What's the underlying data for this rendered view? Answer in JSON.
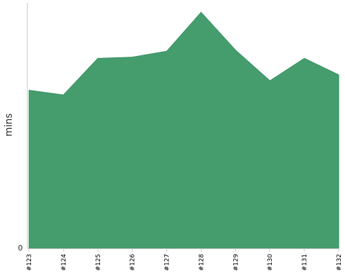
{
  "chart_data": {
    "type": "area",
    "categories": [
      "#123",
      "#124",
      "#125",
      "#126",
      "#127",
      "#128",
      "#129",
      "#130",
      "#131",
      "#132"
    ],
    "series": [
      {
        "values": [
          67,
          65,
          80.5,
          81,
          83.5,
          100,
          84,
          71,
          80.5,
          73.5
        ],
        "color": "#459C6D"
      }
    ],
    "ylabel": "mins",
    "xlabel": "",
    "y_tick_labels": [
      {
        "value": 0,
        "label": "0"
      }
    ],
    "ylim": [
      0,
      104
    ],
    "grid": false,
    "legend": "none"
  }
}
